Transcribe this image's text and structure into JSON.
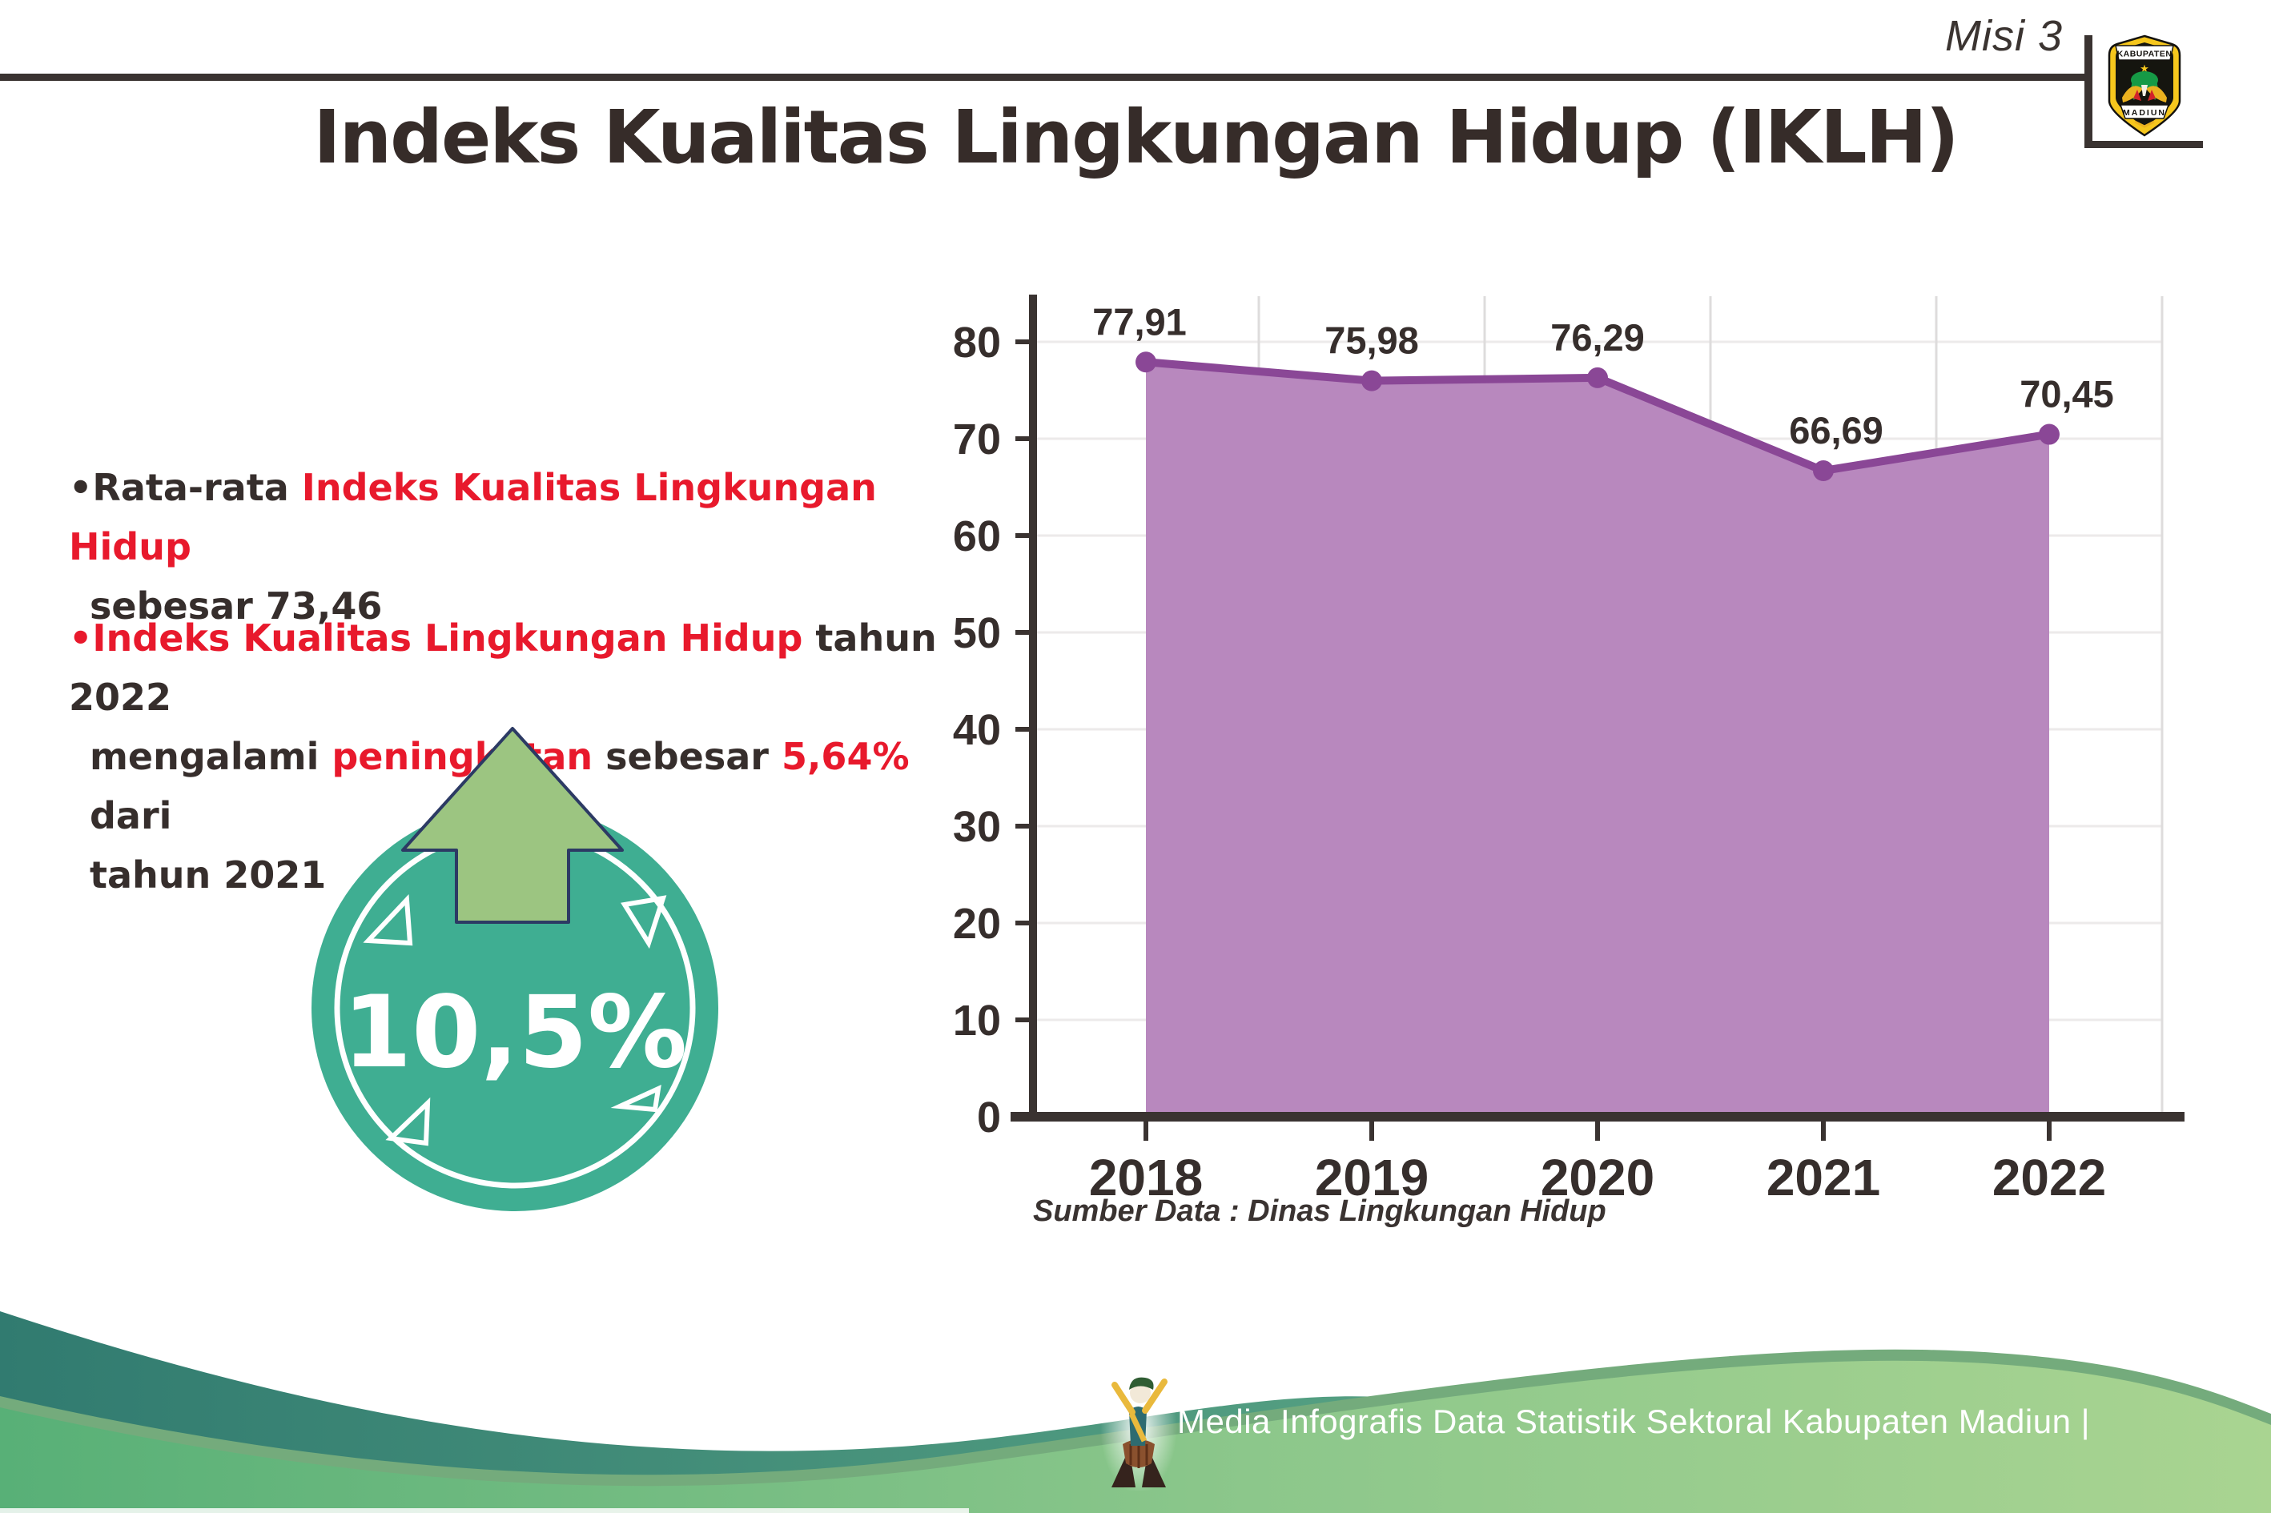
{
  "page": {
    "misi": "Misi 3"
  },
  "logo": {
    "top_banner": "KABUPATEN",
    "bottom_banner": "MADIUN",
    "star": "★"
  },
  "title": "Indeks Kualitas Lingkungan Hidup (IKLH)",
  "bullets": {
    "b1_l1_dark": "•Rata-rata ",
    "b1_l1_red": "Indeks Kualitas Lingkungan Hidup",
    "b1_l2": "sebesar 73,46",
    "b2_l1_red": "•Indeks Kualitas Lingkungan Hidup",
    "b2_l1_dark": " tahun 2022",
    "b2_l2_d1": "mengalami ",
    "b2_l2_r1": "peningkatan",
    "b2_l2_d2": " sebesar ",
    "b2_l2_r2": "5,64%",
    "b2_l2_d3": " dari",
    "b2_l3": "tahun 2021"
  },
  "badge": {
    "value": "10,5%"
  },
  "chart_data": {
    "type": "area",
    "categories": [
      "2018",
      "2019",
      "2020",
      "2021",
      "2022"
    ],
    "values": [
      77.91,
      75.98,
      76.29,
      66.69,
      70.45
    ],
    "labels": [
      "77,91",
      "75,98",
      "76,29",
      "66,69",
      "70,45"
    ],
    "ylim": [
      0,
      80
    ],
    "yticks": [
      "0",
      "10",
      "20",
      "30",
      "40",
      "50",
      "60",
      "70",
      "80"
    ],
    "grid": "on",
    "legend": "none",
    "area_color": "#b888be",
    "line_color": "#8a4796",
    "source": "Sumber Data : Dinas Lingkungan Hidup"
  },
  "footer": {
    "text": "Media Infografis Data Statistik Sektoral Kabupaten Madiun |"
  },
  "colors": {
    "accent_red": "#e8192c",
    "text_dark": "#362e2c",
    "axis_dark": "#3a3331",
    "badge_teal": "#3fae92",
    "arrow_green": "#9cc581",
    "arrow_outline": "#2c3a64",
    "wave_teal_left": "#317b70",
    "wave_teal_right": "#57a283",
    "wave_green_left": "#58b077",
    "wave_green_right": "#a9d491",
    "wave_edging": "#74ab7c"
  }
}
